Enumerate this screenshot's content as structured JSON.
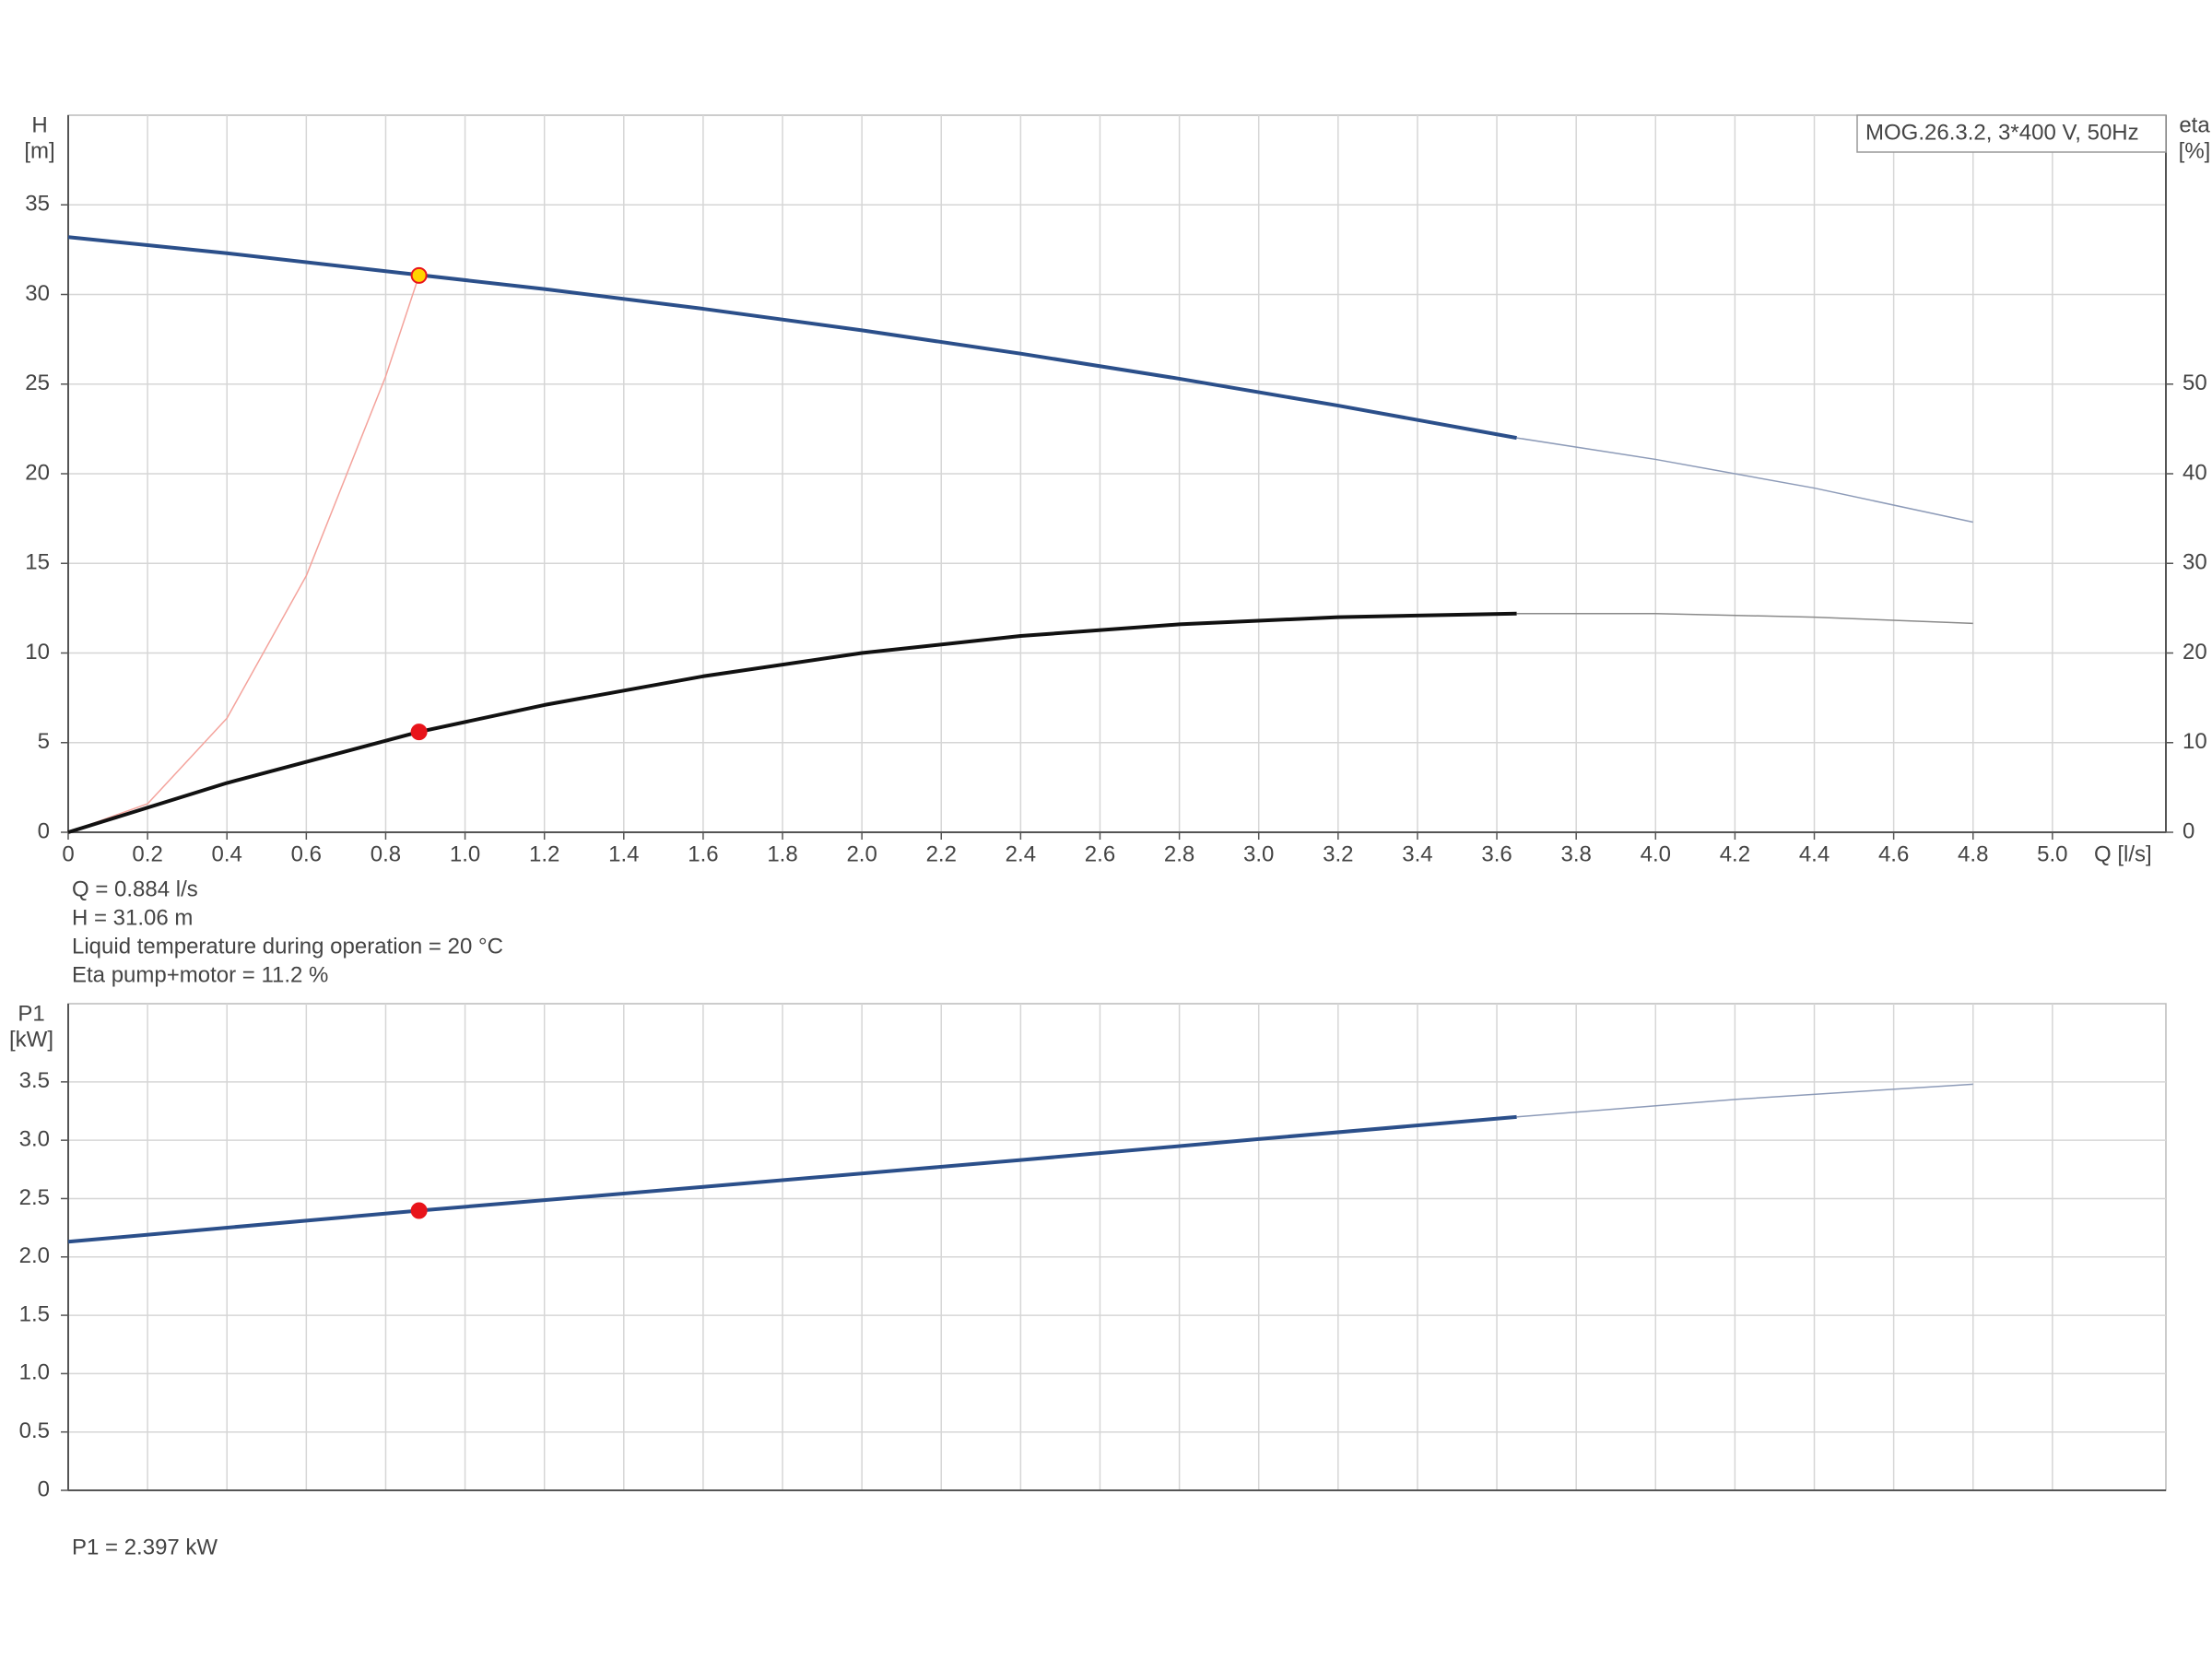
{
  "chart_data": [
    {
      "type": "line",
      "xlabel": "Q [l/s]",
      "ylabel": "H",
      "yunit": "[m]",
      "y2label": "eta",
      "y2unit": "[%]",
      "label_box": "MOG.26.3.2, 3*400 V, 50Hz",
      "xlim": [
        0,
        5.286
      ],
      "ylim": [
        0,
        40
      ],
      "y2lim": [
        0,
        80
      ],
      "xticks": [
        0,
        0.2,
        0.4,
        0.6,
        0.8,
        {
          "value": 1.0,
          "label": "1.0"
        },
        1.2,
        1.4,
        1.6,
        1.8,
        {
          "value": 2.0,
          "label": "2.0"
        },
        2.2,
        2.4,
        2.6,
        2.8,
        {
          "value": 3.0,
          "label": "3.0"
        },
        3.2,
        3.4,
        3.6,
        3.8,
        {
          "value": 4.0,
          "label": "4.0"
        },
        4.2,
        4.4,
        4.6,
        4.8,
        {
          "value": 5.0,
          "label": "5.0"
        }
      ],
      "yticks": [
        0,
        5,
        10,
        15,
        20,
        25,
        30,
        35
      ],
      "y2ticks": [
        0,
        10,
        20,
        30,
        40,
        50
      ],
      "grid": true,
      "series": [
        {
          "color": "#f4a39c",
          "linewidth": 1.5,
          "x": [
            0,
            0.2,
            0.4,
            0.6,
            0.8,
            0.884
          ],
          "values": [
            0,
            1.59,
            6.36,
            14.31,
            25.43,
            31.06
          ]
        },
        {
          "color": "#2b4f8a",
          "linewidth": 4,
          "x": [
            0,
            0.4,
            0.8,
            1.2,
            1.6,
            2.0,
            2.4,
            2.8,
            3.2,
            3.65
          ],
          "values": [
            33.2,
            32.3,
            31.3,
            30.3,
            29.2,
            28.0,
            26.7,
            25.3,
            23.8,
            22.0
          ]
        },
        {
          "color": "#8d9bb8",
          "linewidth": 1.5,
          "x": [
            3.65,
            4.0,
            4.4,
            4.8
          ],
          "values": [
            22.0,
            20.8,
            19.2,
            17.3
          ]
        },
        {
          "color": "#111111",
          "linewidth": 4,
          "axis": "y2",
          "x": [
            0,
            0.4,
            0.884,
            1.2,
            1.6,
            2.0,
            2.4,
            2.8,
            3.2,
            3.65
          ],
          "values": [
            0,
            5.5,
            11.2,
            14.2,
            17.4,
            20.0,
            21.9,
            23.2,
            24.0,
            24.4
          ]
        },
        {
          "color": "#8a8a8a",
          "linewidth": 1.5,
          "axis": "y2",
          "x": [
            3.65,
            4.0,
            4.4,
            4.8
          ],
          "values": [
            24.4,
            24.4,
            24.0,
            23.3
          ]
        }
      ],
      "markers": [
        {
          "x": 0.884,
          "value": 31.06,
          "color": "#ffd400",
          "edge": "#e8141b"
        },
        {
          "x": 0.884,
          "value": 11.2,
          "axis": "y2",
          "color": "#e8141b",
          "edge": "#e8141b"
        }
      ],
      "notes": [
        "Q = 0.884 l/s",
        "H = 31.06 m",
        "Liquid temperature during operation = 20 °C",
        "Eta pump+motor = 11.2 %"
      ]
    },
    {
      "type": "line",
      "ylabel": "P1",
      "yunit": "[kW]",
      "ylim": [
        0,
        4.17
      ],
      "yticks": [
        0,
        0.5,
        {
          "value": 1.0,
          "label": "1.0"
        },
        1.5,
        {
          "value": 2.0,
          "label": "2.0"
        },
        2.5,
        {
          "value": 3.0,
          "label": "3.0"
        },
        3.5
      ],
      "grid": true,
      "series": [
        {
          "color": "#2b4f8a",
          "linewidth": 4,
          "x": [
            0,
            0.884,
            1.6,
            2.4,
            3.0,
            3.65
          ],
          "values": [
            2.13,
            2.397,
            2.6,
            2.83,
            3.01,
            3.2
          ]
        },
        {
          "color": "#8d9bb8",
          "linewidth": 1.5,
          "x": [
            3.65,
            4.2,
            4.8
          ],
          "values": [
            3.2,
            3.35,
            3.48
          ]
        }
      ],
      "markers": [
        {
          "x": 0.884,
          "value": 2.397,
          "color": "#e8141b",
          "edge": "#e8141b"
        }
      ],
      "notes": [
        "P1 = 2.397 kW"
      ]
    }
  ]
}
